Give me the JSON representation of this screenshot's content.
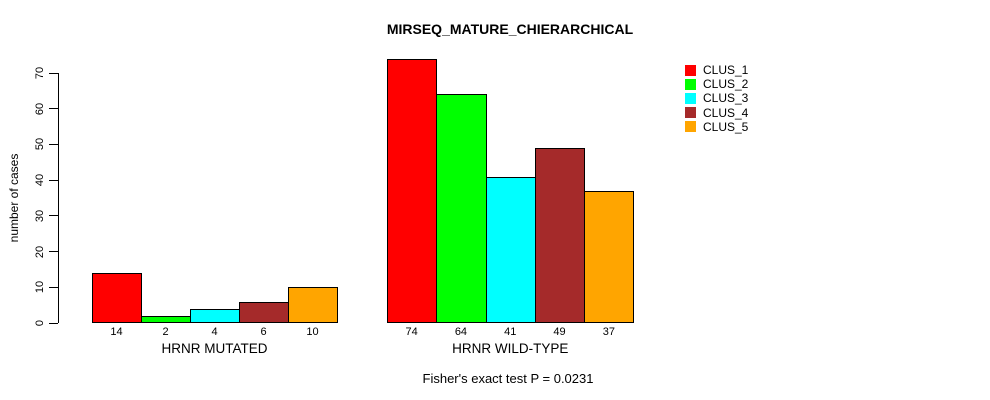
{
  "chart_data": {
    "type": "bar",
    "title": "MIRSEQ_MATURE_CHIERARCHICAL",
    "ylabel": "number of cases",
    "xlabel": "",
    "ylim": [
      0,
      70
    ],
    "yticks": [
      0,
      10,
      20,
      30,
      40,
      50,
      60,
      70
    ],
    "grid": false,
    "legend_position": "top-right",
    "categories": [
      "HRNR MUTATED",
      "HRNR WILD-TYPE"
    ],
    "series": [
      {
        "name": "CLUS_1",
        "color": "#ff0000",
        "values": [
          14,
          74
        ]
      },
      {
        "name": "CLUS_2",
        "color": "#00ff00",
        "values": [
          2,
          64
        ]
      },
      {
        "name": "CLUS_3",
        "color": "#00ffff",
        "values": [
          4,
          41
        ]
      },
      {
        "name": "CLUS_4",
        "color": "#a52a2a",
        "values": [
          6,
          49
        ]
      },
      {
        "name": "CLUS_5",
        "color": "#ffa500",
        "values": [
          10,
          37
        ]
      }
    ],
    "bar_value_labels": [
      [
        "14",
        "2",
        "4",
        "6",
        "10"
      ],
      [
        "74",
        "64",
        "41",
        "49",
        "37"
      ]
    ],
    "annotation": "Fisher's exact test P = 0.0231"
  }
}
